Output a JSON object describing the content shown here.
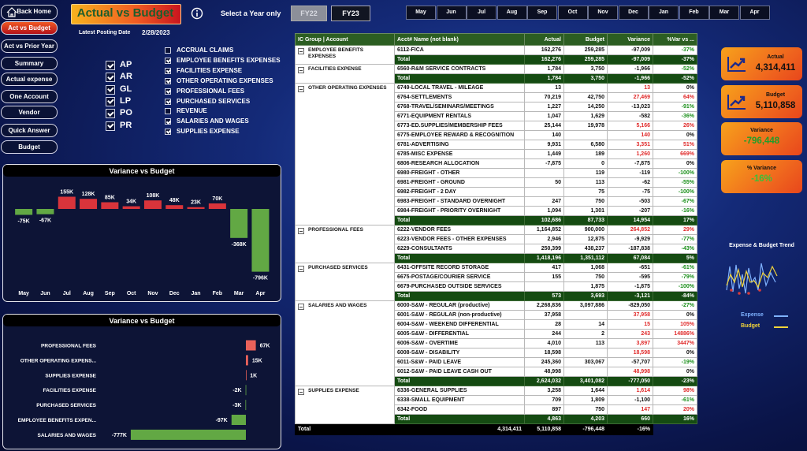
{
  "nav": {
    "buttons": [
      {
        "label": "Back Home",
        "selected": false
      },
      {
        "label": "Act vs Budget",
        "selected": true
      },
      {
        "label": "Act vs Prior Year",
        "selected": false
      },
      {
        "label": "Summary",
        "selected": false
      },
      {
        "label": "Actual expense",
        "selected": false
      },
      {
        "label": "One Account",
        "selected": false
      },
      {
        "label": "Vendor",
        "selected": false
      },
      {
        "label": "Quick Answer",
        "selected": false
      },
      {
        "label": "Budget",
        "selected": false
      }
    ]
  },
  "header": {
    "title": "Actual vs Budget",
    "select_label": "Select a Year only",
    "years": [
      {
        "label": "FY22",
        "selected": false
      },
      {
        "label": "FY23",
        "selected": true
      }
    ],
    "months": [
      "May",
      "Jun",
      "Jul",
      "Aug",
      "Sep",
      "Oct",
      "Nov",
      "Dec",
      "Jan",
      "Feb",
      "Mar",
      "Apr"
    ],
    "posting_label": "Latest Posting Date",
    "posting_date": "2/28/2023"
  },
  "slicers": {
    "codes": [
      {
        "label": "AP",
        "checked": true
      },
      {
        "label": "AR",
        "checked": true
      },
      {
        "label": "GL",
        "checked": true
      },
      {
        "label": "LP",
        "checked": true
      },
      {
        "label": "PO",
        "checked": true
      },
      {
        "label": "PR",
        "checked": true
      }
    ],
    "groups": [
      {
        "label": "ACCRUAL CLAIMS",
        "checked": false
      },
      {
        "label": "EMPLOYEE BENEFITS EXPENSES",
        "checked": true
      },
      {
        "label": "FACILITIES EXPENSE",
        "checked": true
      },
      {
        "label": "OTHER OPERATING EXPENSES",
        "checked": true
      },
      {
        "label": "PROFESSIONAL FEES",
        "checked": true
      },
      {
        "label": "PURCHASED SERVICES",
        "checked": true
      },
      {
        "label": "REVENUE",
        "checked": false
      },
      {
        "label": "SALARIES AND WAGES",
        "checked": true
      },
      {
        "label": "SUPPLIES EXPENSE",
        "checked": true
      }
    ]
  },
  "chart_data": [
    {
      "type": "bar",
      "title": "Variance vs Budget",
      "categories": [
        "May",
        "Jun",
        "Jul",
        "Aug",
        "Sep",
        "Oct",
        "Nov",
        "Dec",
        "Jan",
        "Feb",
        "Mar",
        "Apr"
      ],
      "values": [
        -75,
        -67,
        155,
        128,
        85,
        34,
        108,
        48,
        23,
        70,
        -368,
        -796
      ],
      "value_labels": [
        "-75K",
        "-67K",
        "155K",
        "128K",
        "85K",
        "34K",
        "108K",
        "48K",
        "23K",
        "70K",
        "-368K",
        "-796K"
      ],
      "positive_color": "#d9343b",
      "negative_color": "#62a844"
    },
    {
      "type": "hbar",
      "title": "Variance vs Budget",
      "categories": [
        "PROFESSIONAL FEES",
        "OTHER OPERATING EXPENS...",
        "SUPPLIES EXPENSE",
        "FACILITIES EXPENSE",
        "PURCHASED SERVICES",
        "EMPLOYEE BENEFITS EXPEN...",
        "SALARIES AND WAGES"
      ],
      "values": [
        67,
        15,
        1,
        -2,
        -3,
        -97,
        -777
      ],
      "value_labels": [
        "67K",
        "15K",
        "1K",
        "-2K",
        "-3K",
        "-97K",
        "-777K"
      ],
      "positive_color": "#e9615a",
      "negative_color": "#62a844"
    }
  ],
  "kpis": [
    {
      "label": "Actual",
      "value": "4,314,411",
      "color": "#111111"
    },
    {
      "label": "Budget",
      "value": "5,110,858",
      "color": "#111111"
    },
    {
      "label": "Variance",
      "value": "-796,448",
      "color": "#1f9e2a"
    },
    {
      "label": "% Variance",
      "value": "-16%",
      "color": "#36c23a"
    }
  ],
  "trend": {
    "title": "Expense & Budget Trend",
    "legend": [
      {
        "name": "Expense",
        "color": "#7fb2ff"
      },
      {
        "name": "Budget",
        "color": "#f2d43a"
      }
    ]
  },
  "table": {
    "columns": [
      "IC Group | Account",
      "Acct# Name (not blank)",
      "Actual",
      "Budget",
      "Variance",
      "%Var vs ..."
    ],
    "groups": [
      {
        "name": "EMPLOYEE BENEFITS EXPENSES",
        "rows": [
          [
            "6112-FICA",
            "162,276",
            "259,285",
            "-97,009",
            "-37%"
          ]
        ],
        "total": [
          "Total",
          "162,276",
          "259,285",
          "-97,009",
          "-37%"
        ]
      },
      {
        "name": "FACILITIES EXPENSE",
        "rows": [
          [
            "6560-R&M SERVICE CONTRACTS",
            "1,784",
            "3,750",
            "-1,966",
            "-52%"
          ]
        ],
        "total": [
          "Total",
          "1,784",
          "3,750",
          "-1,966",
          "-52%"
        ]
      },
      {
        "name": "OTHER OPERATING EXPENSES",
        "rows": [
          [
            "6749-LOCAL TRAVEL - MILEAGE",
            "13",
            null,
            "13",
            "0%"
          ],
          [
            "6764-SETTLEMENTS",
            "70,219",
            "42,750",
            "27,469",
            "64%"
          ],
          [
            "6768-TRAVEL/SEMINARS/MEETINGS",
            "1,227",
            "14,250",
            "-13,023",
            "-91%"
          ],
          [
            "6771-EQUIPMENT RENTALS",
            "1,047",
            "1,629",
            "-582",
            "-36%"
          ],
          [
            "6773-ED.SUPPLIES/MEMBERSHIP FEES",
            "25,144",
            "19,978",
            "5,166",
            "26%"
          ],
          [
            "6775-EMPLOYEE REWARD & RECOGNITION",
            "140",
            null,
            "140",
            "0%"
          ],
          [
            "6781-ADVERTISING",
            "9,931",
            "6,580",
            "3,351",
            "51%"
          ],
          [
            "6785-MISC EXPENSE",
            "1,449",
            "189",
            "1,260",
            "669%"
          ],
          [
            "6806-RESEARCH ALLOCATION",
            "-7,875",
            "0",
            "-7,875",
            "0%"
          ],
          [
            "6980-FREIGHT - OTHER",
            null,
            "119",
            "-119",
            "-100%"
          ],
          [
            "6981-FREIGHT - GROUND",
            "50",
            "113",
            "-62",
            "-55%"
          ],
          [
            "6982-FREIGHT - 2 DAY",
            null,
            "75",
            "-75",
            "-100%"
          ],
          [
            "6983-FREIGHT - STANDARD OVERNIGHT",
            "247",
            "750",
            "-503",
            "-67%"
          ],
          [
            "6984-FREIGHT - PRIORITY OVERNIGHT",
            "1,094",
            "1,301",
            "-207",
            "-16%"
          ]
        ],
        "total": [
          "Total",
          "102,686",
          "87,733",
          "14,954",
          "17%"
        ]
      },
      {
        "name": "PROFESSIONAL FEES",
        "rows": [
          [
            "6222-VENDOR FEES",
            "1,164,852",
            "900,000",
            "264,852",
            "29%"
          ],
          [
            "6223-VENDOR FEES - OTHER EXPENSES",
            "2,946",
            "12,875",
            "-9,929",
            "-77%"
          ],
          [
            "6229-CONSULTANTS",
            "250,399",
            "438,237",
            "-187,838",
            "-43%"
          ]
        ],
        "total": [
          "Total",
          "1,418,196",
          "1,351,112",
          "67,084",
          "5%"
        ]
      },
      {
        "name": "PURCHASED SERVICES",
        "rows": [
          [
            "6431-OFFSITE RECORD STORAGE",
            "417",
            "1,068",
            "-651",
            "-61%"
          ],
          [
            "6675-POSTAGE/COURIER SERVICE",
            "155",
            "750",
            "-595",
            "-79%"
          ],
          [
            "6679-PURCHASED OUTSIDE SERVICES",
            null,
            "1,875",
            "-1,875",
            "-100%"
          ]
        ],
        "total": [
          "Total",
          "573",
          "3,693",
          "-3,121",
          "-84%"
        ]
      },
      {
        "name": "SALARIES AND WAGES",
        "rows": [
          [
            "6000-S&W - REGULAR (productive)",
            "2,268,836",
            "3,097,886",
            "-829,050",
            "-27%"
          ],
          [
            "6001-S&W - REGULAR (non-productive)",
            "37,958",
            null,
            "37,958",
            "0%"
          ],
          [
            "6004-S&W - WEEKEND DIFFERENTIAL",
            "28",
            "14",
            "15",
            "105%"
          ],
          [
            "6005-S&W - DIFFERENTIAL",
            "244",
            "2",
            "243",
            "14886%"
          ],
          [
            "6006-S&W - OVERTIME",
            "4,010",
            "113",
            "3,897",
            "3447%"
          ],
          [
            "6008-S&W - DISABILITY",
            "18,598",
            null,
            "18,598",
            "0%"
          ],
          [
            "6011-S&W - PAID LEAVE",
            "245,360",
            "303,067",
            "-57,707",
            "-19%"
          ],
          [
            "6012-S&W - PAID LEAVE CASH OUT",
            "48,998",
            null,
            "48,998",
            "0%"
          ]
        ],
        "total": [
          "Total",
          "2,624,032",
          "3,401,082",
          "-777,050",
          "-23%"
        ]
      },
      {
        "name": "SUPPLIES EXPENSE",
        "rows": [
          [
            "6336-GENERAL SUPPLIES",
            "3,258",
            "1,644",
            "1,614",
            "98%"
          ],
          [
            "6338-SMALL EQUIPMENT",
            "709",
            "1,809",
            "-1,100",
            "-61%"
          ],
          [
            "6342-FOOD",
            "897",
            "750",
            "147",
            "20%"
          ]
        ],
        "total": [
          "Total",
          "4,863",
          "4,203",
          "660",
          "16%"
        ]
      }
    ],
    "grand_total": [
      "Total",
      "4,314,411",
      "5,110,858",
      "-796,448",
      "-16%"
    ]
  }
}
